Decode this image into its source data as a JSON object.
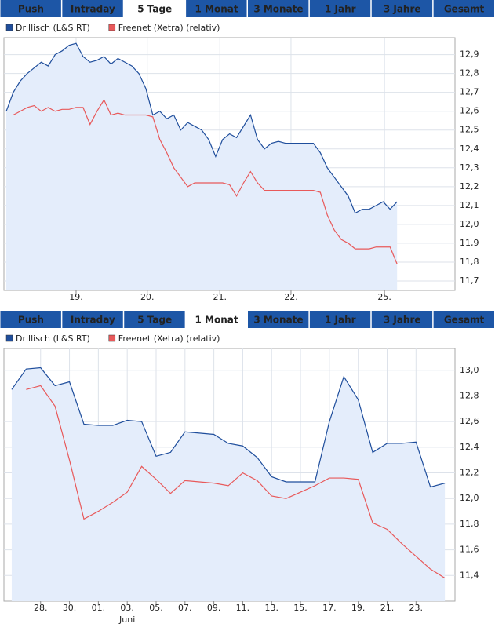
{
  "panels": [
    {
      "tabs": [
        "Push",
        "Intraday",
        "5 Tage",
        "1 Monat",
        "3 Monate",
        "1 Jahr",
        "3 Jahre",
        "Gesamt"
      ],
      "active_tab": 2
    },
    {
      "tabs": [
        "Push",
        "Intraday",
        "5 Tage",
        "1 Monat",
        "3 Monate",
        "1 Jahr",
        "3 Jahre",
        "Gesamt"
      ],
      "active_tab": 3
    }
  ],
  "chart_data": [
    {
      "type": "line",
      "grid": true,
      "legend": "top-left",
      "area_color": "#e4edfb",
      "xlim": [
        -0.34,
        64.3
      ],
      "ylim": [
        11.65,
        12.99
      ],
      "xticks": [
        {
          "value": 10,
          "label": "19."
        },
        {
          "value": 20.2,
          "label": "20."
        },
        {
          "value": 30.6,
          "label": "21."
        },
        {
          "value": 40.8,
          "label": "22."
        },
        {
          "value": 54.2,
          "label": "25."
        }
      ],
      "yticks": [
        {
          "value": 11.7,
          "label": "11,7"
        },
        {
          "value": 11.8,
          "label": "11,8"
        },
        {
          "value": 11.9,
          "label": "11,9"
        },
        {
          "value": 12.0,
          "label": "12,0"
        },
        {
          "value": 12.1,
          "label": "12,1"
        },
        {
          "value": 12.2,
          "label": "12,2"
        },
        {
          "value": 12.3,
          "label": "12,3"
        },
        {
          "value": 12.4,
          "label": "12,4"
        },
        {
          "value": 12.5,
          "label": "12,5"
        },
        {
          "value": 12.6,
          "label": "12,6"
        },
        {
          "value": 12.7,
          "label": "12,7"
        },
        {
          "value": 12.8,
          "label": "12,8"
        },
        {
          "value": 12.9,
          "label": "12,9"
        }
      ],
      "series": [
        {
          "name": "Drillisch (L&S RT)",
          "color": "#1f4e9c",
          "values": [
            12.6,
            12.7,
            12.76,
            12.8,
            12.83,
            12.86,
            12.84,
            12.9,
            12.92,
            12.95,
            12.96,
            12.89,
            12.86,
            12.87,
            12.89,
            12.85,
            12.88,
            12.86,
            12.84,
            12.8,
            12.72,
            12.58,
            12.6,
            12.56,
            12.58,
            12.5,
            12.54,
            12.52,
            12.5,
            12.45,
            12.36,
            12.45,
            12.48,
            12.46,
            12.52,
            12.58,
            12.45,
            12.4,
            12.43,
            12.44,
            12.43,
            12.43,
            12.43,
            12.43,
            12.43,
            12.38,
            12.3,
            12.25,
            12.2,
            12.15,
            12.06,
            12.08,
            12.08,
            12.1,
            12.12,
            12.08,
            12.12
          ]
        },
        {
          "name": "Freenet (Xetra) (relativ)",
          "color": "#e8595a",
          "values": [
            null,
            12.58,
            12.6,
            12.62,
            12.63,
            12.6,
            12.62,
            12.6,
            12.61,
            12.61,
            12.62,
            12.62,
            12.53,
            12.6,
            12.66,
            12.58,
            12.59,
            12.58,
            12.58,
            12.58,
            12.58,
            12.57,
            12.45,
            12.38,
            12.3,
            12.25,
            12.2,
            12.22,
            12.22,
            12.22,
            12.22,
            12.22,
            12.21,
            12.15,
            12.22,
            12.28,
            12.22,
            12.18,
            12.18,
            12.18,
            12.18,
            12.18,
            12.18,
            12.18,
            12.18,
            12.17,
            12.05,
            11.97,
            11.92,
            11.9,
            11.87,
            11.87,
            11.87,
            11.88,
            11.88,
            11.88,
            11.79
          ]
        }
      ]
    },
    {
      "type": "line",
      "grid": true,
      "legend": "top-left",
      "area_color": "#e4edfb",
      "xlim": [
        -0.54,
        30.7
      ],
      "ylim": [
        11.2,
        13.17
      ],
      "annotation": "Juni",
      "annotation_tick": 3,
      "xticks": [
        {
          "value": 2,
          "label": "28."
        },
        {
          "value": 4,
          "label": "30."
        },
        {
          "value": 6,
          "label": "01."
        },
        {
          "value": 8,
          "label": "03."
        },
        {
          "value": 10,
          "label": "05."
        },
        {
          "value": 12,
          "label": "07."
        },
        {
          "value": 14,
          "label": "09."
        },
        {
          "value": 16,
          "label": "11."
        },
        {
          "value": 18,
          "label": "13."
        },
        {
          "value": 20,
          "label": "15."
        },
        {
          "value": 22,
          "label": "17."
        },
        {
          "value": 24,
          "label": "19."
        },
        {
          "value": 26,
          "label": "21."
        },
        {
          "value": 28,
          "label": "23."
        }
      ],
      "yticks": [
        {
          "value": 11.4,
          "label": "11,4"
        },
        {
          "value": 11.6,
          "label": "11,6"
        },
        {
          "value": 11.8,
          "label": "11,8"
        },
        {
          "value": 12.0,
          "label": "12,0"
        },
        {
          "value": 12.2,
          "label": "12,2"
        },
        {
          "value": 12.4,
          "label": "12,4"
        },
        {
          "value": 12.6,
          "label": "12,6"
        },
        {
          "value": 12.8,
          "label": "12,8"
        },
        {
          "value": 13.0,
          "label": "13,0"
        }
      ],
      "series": [
        {
          "name": "Drillisch (L&S RT)",
          "color": "#1f4e9c",
          "values": [
            12.85,
            13.01,
            13.02,
            12.88,
            12.91,
            12.58,
            12.57,
            12.57,
            12.61,
            12.6,
            12.33,
            12.36,
            12.52,
            12.51,
            12.5,
            12.43,
            12.41,
            12.32,
            12.17,
            12.13,
            12.13,
            12.13,
            12.6,
            12.95,
            12.77,
            12.36,
            12.43,
            12.43,
            12.44,
            12.09,
            12.12
          ]
        },
        {
          "name": "Freenet (Xetra) (relativ)",
          "color": "#e8595a",
          "values": [
            null,
            12.85,
            12.88,
            12.72,
            12.3,
            11.84,
            11.9,
            11.97,
            12.05,
            12.25,
            12.15,
            12.04,
            12.14,
            12.13,
            12.12,
            12.1,
            12.2,
            12.14,
            12.02,
            12.0,
            12.05,
            12.1,
            12.16,
            12.16,
            12.15,
            11.81,
            11.76,
            11.65,
            11.55,
            11.45,
            11.38
          ]
        }
      ]
    }
  ]
}
